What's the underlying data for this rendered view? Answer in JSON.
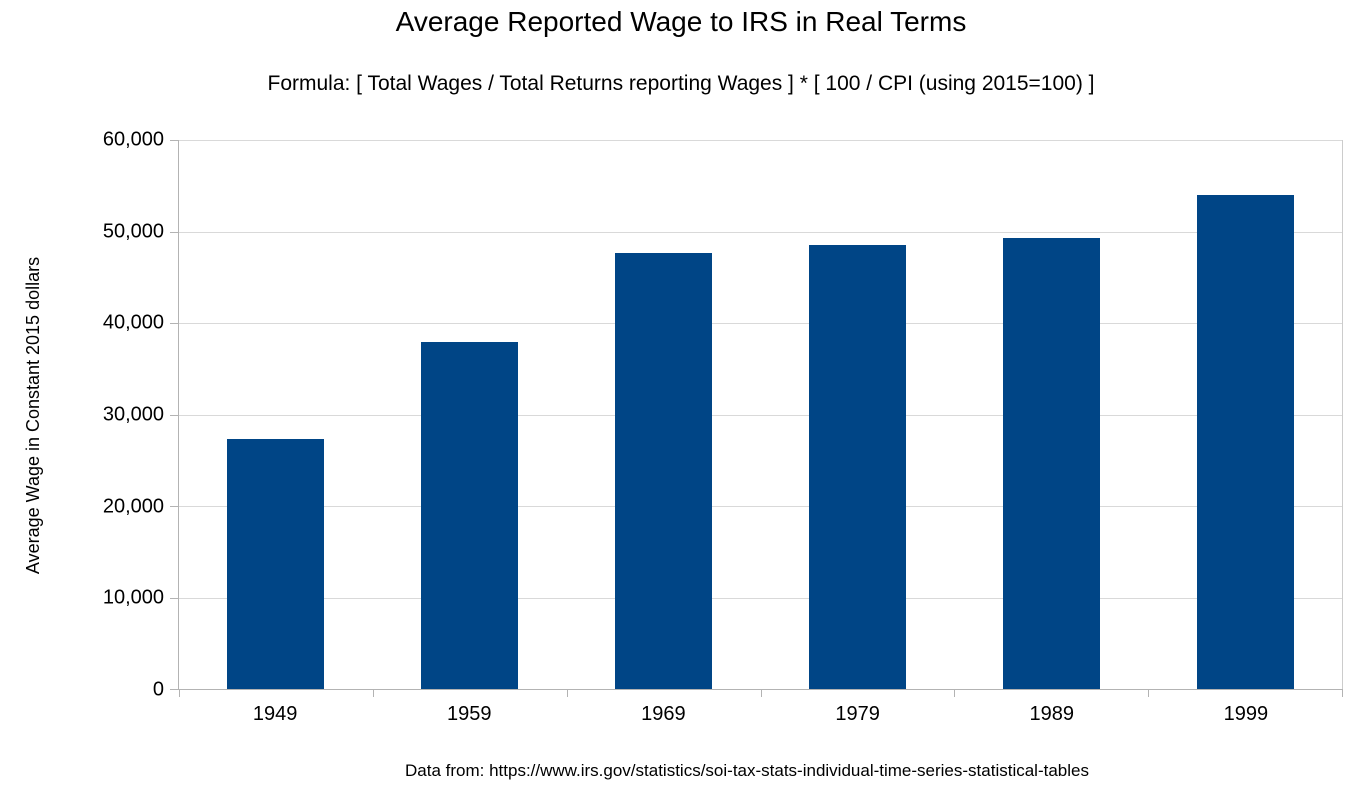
{
  "chart_data": {
    "type": "bar",
    "title": "Average Reported Wage to IRS in Real Terms",
    "subtitle": "Formula: [ Total Wages / Total Returns reporting Wages ] * [ 100 / CPI (using 2015=100) ]",
    "caption": "Data from: https://www.irs.gov/statistics/soi-tax-stats-individual-time-series-statistical-tables",
    "categories": [
      "1949",
      "1959",
      "1969",
      "1979",
      "1989",
      "1999"
    ],
    "values": [
      27300,
      37900,
      47700,
      48500,
      49300,
      54000
    ],
    "xlabel": "",
    "ylabel": "Average Wage in Constant 2015 dollars",
    "ylim": [
      0,
      60000
    ],
    "yticks": [
      0,
      10000,
      20000,
      30000,
      40000,
      50000,
      60000
    ],
    "ytick_labels": [
      "0",
      "10,000",
      "20,000",
      "30,000",
      "40,000",
      "50,000",
      "60,000"
    ],
    "grid": true,
    "legend": "none",
    "bar_width_fraction": 0.5,
    "bar_color": "#004586"
  },
  "colors": {
    "bar": "#004586",
    "gridline": "#d9d9d9",
    "axis": "#b3b3b3",
    "text": "#000000"
  }
}
